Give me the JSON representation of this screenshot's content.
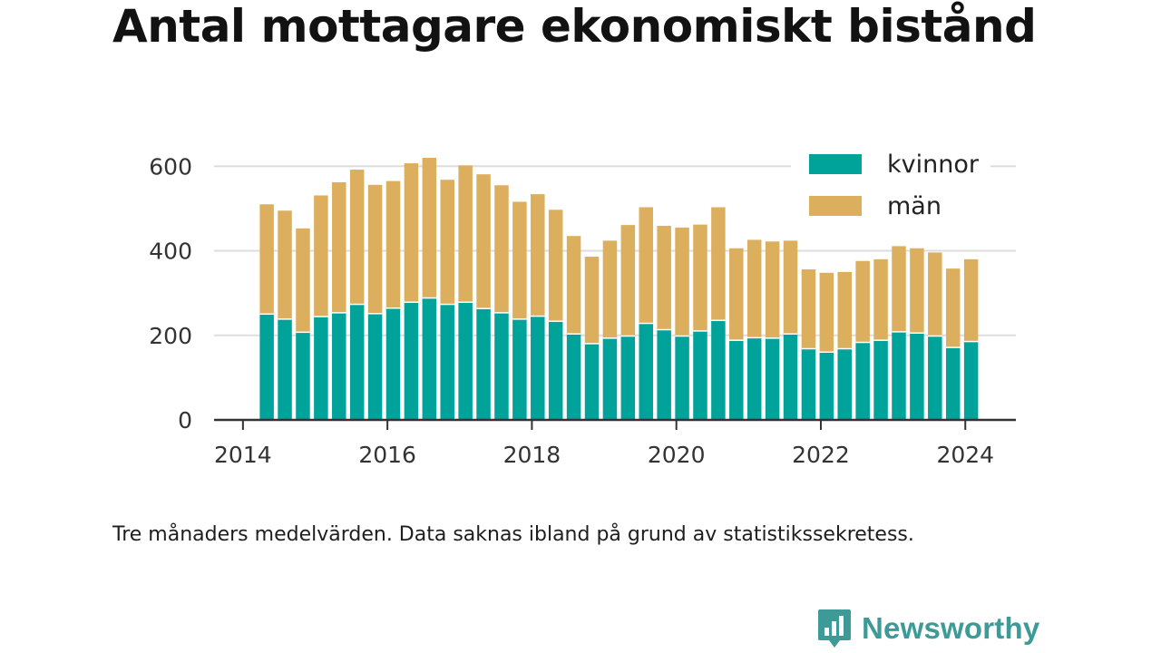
{
  "title": "Antal mottagare ekonomiskt bistånd",
  "caption": "Tre månaders medelvärden. Data saknas ibland på grund av statistikssekretess.",
  "brand": {
    "name": "Newsworthy",
    "color": "#3e9a97"
  },
  "colors": {
    "kvinnor": "#00a39a",
    "man": "#dcaf5f",
    "grid": "#dddddd",
    "axis": "#333333"
  },
  "chart_data": {
    "type": "bar",
    "stacked": true,
    "title": "Antal mottagare ekonomiskt bistånd",
    "xlabel": "",
    "ylabel": "",
    "xlim": [
      2013.6,
      2024.7
    ],
    "ylim": [
      0,
      650
    ],
    "yticks": [
      0,
      200,
      400,
      600
    ],
    "xticks": [
      2014,
      2016,
      2018,
      2020,
      2022,
      2024
    ],
    "grid": "horizontal",
    "legend": "top-right",
    "x": [
      2014.33,
      2014.58,
      2014.83,
      2015.08,
      2015.33,
      2015.58,
      2015.83,
      2016.08,
      2016.33,
      2016.58,
      2016.83,
      2017.08,
      2017.33,
      2017.58,
      2017.83,
      2018.08,
      2018.33,
      2018.58,
      2018.83,
      2019.08,
      2019.33,
      2019.58,
      2019.83,
      2020.08,
      2020.33,
      2020.58,
      2020.83,
      2021.08,
      2021.33,
      2021.58,
      2021.83,
      2022.08,
      2022.33,
      2022.58,
      2022.83,
      2023.08,
      2023.33,
      2023.58,
      2023.83,
      2024.08
    ],
    "series": [
      {
        "name": "kvinnor",
        "values": [
          252,
          240,
          209,
          246,
          255,
          275,
          253,
          266,
          280,
          290,
          275,
          280,
          265,
          255,
          240,
          247,
          235,
          205,
          182,
          195,
          200,
          230,
          215,
          200,
          212,
          237,
          190,
          196,
          195,
          205,
          170,
          162,
          170,
          185,
          190,
          210,
          207,
          200,
          173,
          187
        ]
      },
      {
        "name": "män",
        "values": [
          258,
          255,
          244,
          285,
          307,
          317,
          303,
          299,
          327,
          330,
          293,
          322,
          316,
          300,
          276,
          287,
          262,
          230,
          204,
          229,
          261,
          273,
          244,
          255,
          250,
          266,
          216,
          230,
          227,
          219,
          186,
          186,
          180,
          191,
          190,
          201,
          199,
          196,
          185,
          193
        ]
      }
    ]
  }
}
